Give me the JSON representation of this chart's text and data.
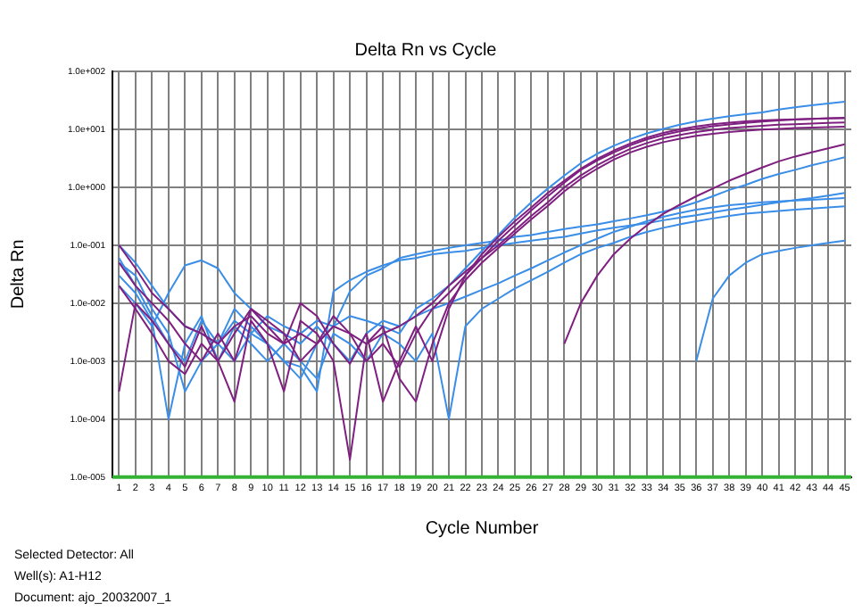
{
  "chart_data": {
    "type": "line",
    "title": "Delta Rn vs Cycle",
    "xlabel": "Cycle Number",
    "ylabel": "Delta Rn",
    "x": [
      1,
      2,
      3,
      4,
      5,
      6,
      7,
      8,
      9,
      10,
      11,
      12,
      13,
      14,
      15,
      16,
      17,
      18,
      19,
      20,
      21,
      22,
      23,
      24,
      25,
      26,
      27,
      28,
      29,
      30,
      31,
      32,
      33,
      34,
      35,
      36,
      37,
      38,
      39,
      40,
      41,
      42,
      43,
      44,
      45
    ],
    "xlim": [
      0.6,
      45.4
    ],
    "xticks": [
      1,
      2,
      3,
      4,
      5,
      6,
      7,
      8,
      9,
      10,
      11,
      12,
      13,
      14,
      15,
      16,
      17,
      18,
      19,
      20,
      21,
      22,
      23,
      24,
      25,
      26,
      27,
      28,
      29,
      30,
      31,
      32,
      33,
      34,
      35,
      36,
      37,
      38,
      39,
      40,
      41,
      42,
      43,
      44,
      45
    ],
    "log": true,
    "ylim": [
      1e-05,
      100
    ],
    "yticks": [
      {
        "value": 1e-05,
        "label": "1.0e-005"
      },
      {
        "value": 0.0001,
        "label": "1.0e-004"
      },
      {
        "value": 0.001,
        "label": "1.0e-003"
      },
      {
        "value": 0.01,
        "label": "1.0e-002"
      },
      {
        "value": 0.1,
        "label": "1.0e-001"
      },
      {
        "value": 1,
        "label": "1.0e+000"
      },
      {
        "value": 10,
        "label": "1.0e+001"
      },
      {
        "value": 100,
        "label": "1.0e+002"
      }
    ],
    "grid": true,
    "legend": false,
    "marker": "none",
    "line_style": "solid",
    "ref_lines": [
      {
        "axis": "y",
        "value": 1e-05,
        "color": "#33b233"
      }
    ],
    "annotations": [
      "Selected Detector: All",
      "Well(s): A1-H12",
      "Document: ajo_20032007_1"
    ],
    "series": [
      {
        "color": "#7f1f80",
        "values": [
          0.1,
          0.04,
          0.015,
          0.008,
          0.004,
          0.003,
          0.002,
          0.004,
          0.006,
          0.003,
          0.002,
          0.003,
          0.002,
          0.004,
          0.003,
          0.002,
          0.003,
          0.004,
          0.006,
          0.01,
          0.02,
          0.035,
          0.06,
          0.1,
          0.18,
          0.32,
          0.55,
          1.0,
          1.6,
          2.4,
          3.4,
          4.6,
          5.8,
          7,
          8,
          9,
          9.8,
          10.5,
          11,
          11.5,
          12,
          12.3,
          12.6,
          12.9,
          13.2
        ]
      },
      {
        "color": "#7f1f80",
        "values": [
          0.05,
          0.02,
          0.01,
          0.005,
          0.002,
          0.001,
          0.003,
          0.001,
          0.008,
          0.005,
          0.003,
          0.001,
          0.002,
          0.006,
          0.003,
          0.001,
          0.002,
          0.0008,
          0.003,
          0.008,
          0.015,
          0.03,
          0.06,
          0.12,
          0.22,
          0.4,
          0.7,
          1.2,
          2,
          2.9,
          4,
          5.3,
          6.7,
          8,
          9.2,
          10.3,
          11.3,
          12.1,
          12.9,
          13.6,
          14.2,
          14.7,
          15.1,
          15.5,
          15.8
        ]
      },
      {
        "color": "#7f1f80",
        "values": [
          0.0003,
          0.01,
          0.005,
          0.002,
          0.0008,
          0.004,
          0.001,
          0.0002,
          0.005,
          0.002,
          0.0003,
          0.005,
          0.003,
          0.001,
          2e-05,
          0.002,
          0.004,
          0.0005,
          0.0002,
          0.002,
          0.01,
          0.025,
          0.05,
          0.09,
          0.16,
          0.28,
          0.48,
          0.85,
          1.4,
          2.1,
          3,
          4,
          5,
          6,
          6.9,
          7.7,
          8.4,
          9,
          9.5,
          9.9,
          10.2,
          10.5,
          10.7,
          10.9,
          11.1
        ]
      },
      {
        "color": "#7f1f80",
        "values": [
          0.02,
          0.008,
          0.003,
          0.001,
          0.0006,
          0.002,
          0.001,
          0.003,
          0.008,
          0.004,
          0.002,
          0.01,
          0.006,
          0.002,
          0.0009,
          0.003,
          0.0002,
          0.001,
          0.004,
          0.001,
          0.008,
          0.03,
          0.07,
          0.14,
          0.26,
          0.45,
          0.8,
          1.3,
          2.1,
          3.1,
          4.3,
          5.7,
          7.2,
          8.7,
          10,
          11.2,
          12.2,
          13,
          13.7,
          14.2,
          14.6,
          14.9,
          15.2,
          15.4,
          15.6
        ]
      },
      {
        "color": "#7f1f80",
        "values": [
          null,
          null,
          null,
          null,
          null,
          null,
          null,
          null,
          null,
          null,
          null,
          null,
          null,
          null,
          null,
          null,
          null,
          null,
          null,
          null,
          null,
          null,
          null,
          null,
          null,
          null,
          null,
          0.002,
          0.01,
          0.03,
          0.07,
          0.13,
          0.22,
          0.35,
          0.5,
          0.7,
          0.95,
          1.3,
          1.7,
          2.2,
          2.8,
          3.4,
          4,
          4.7,
          5.5
        ]
      },
      {
        "color": "#3a8ee8",
        "values": [
          0.06,
          0.02,
          0.006,
          0.002,
          0.001,
          0.005,
          0.002,
          0.001,
          0.003,
          0.002,
          0.001,
          0.0005,
          0.002,
          0.004,
          0.006,
          0.005,
          0.004,
          0.003,
          0.008,
          0.012,
          0.02,
          0.04,
          0.08,
          0.15,
          0.3,
          0.55,
          0.95,
          1.6,
          2.6,
          3.8,
          5.2,
          6.8,
          8.5,
          10.2,
          12,
          13.7,
          15.3,
          16.8,
          18.2,
          19.6,
          22,
          24,
          26,
          28,
          30
        ]
      },
      {
        "color": "#3a8ee8",
        "values": [
          0.1,
          0.05,
          0.02,
          0.008,
          0.004,
          0.003,
          0.002,
          0.005,
          0.003,
          0.006,
          0.004,
          0.003,
          0.005,
          0.004,
          0.016,
          0.03,
          0.04,
          0.06,
          0.07,
          0.08,
          0.09,
          0.1,
          0.11,
          0.12,
          0.14,
          0.15,
          0.17,
          0.19,
          0.21,
          0.23,
          0.26,
          0.29,
          0.33,
          0.38,
          0.45,
          0.55,
          0.7,
          0.9,
          1.1,
          1.4,
          1.7,
          2,
          2.4,
          2.8,
          3.3
        ]
      },
      {
        "color": "#3a8ee8",
        "values": [
          0.03,
          0.015,
          0.005,
          0.0001,
          0.002,
          0.006,
          0.001,
          0.004,
          0.002,
          0.001,
          0.002,
          0.001,
          0.0005,
          0.003,
          0.002,
          0.001,
          0.003,
          0.002,
          0.001,
          0.003,
          0.0001,
          0.004,
          0.008,
          0.012,
          0.018,
          0.025,
          0.035,
          0.05,
          0.07,
          0.09,
          0.11,
          0.14,
          0.17,
          0.2,
          0.23,
          0.26,
          0.29,
          0.32,
          0.35,
          0.37,
          0.39,
          0.41,
          0.43,
          0.45,
          0.47
        ]
      },
      {
        "color": "#3a8ee8",
        "values": [
          0.02,
          0.01,
          0.004,
          0.015,
          0.045,
          0.055,
          0.04,
          0.015,
          0.008,
          0.004,
          0.003,
          0.002,
          0.004,
          0.002,
          0.001,
          0.003,
          0.005,
          0.004,
          0.006,
          0.008,
          0.01,
          0.013,
          0.017,
          0.022,
          0.03,
          0.04,
          0.055,
          0.075,
          0.1,
          0.13,
          0.17,
          0.21,
          0.26,
          0.31,
          0.36,
          0.41,
          0.45,
          0.49,
          0.52,
          0.55,
          0.57,
          0.59,
          0.61,
          0.63,
          0.65
        ]
      },
      {
        "color": "#3a8ee8",
        "values": [
          0.05,
          0.03,
          0.008,
          0.003,
          0.0003,
          0.001,
          0.002,
          0.008,
          0.004,
          0.002,
          0.001,
          0.0008,
          0.0003,
          0.016,
          0.025,
          0.035,
          0.045,
          0.055,
          0.06,
          0.07,
          0.075,
          0.08,
          0.09,
          0.1,
          0.11,
          0.12,
          0.13,
          0.14,
          0.16,
          0.18,
          0.2,
          0.22,
          0.24,
          0.27,
          0.3,
          0.33,
          0.37,
          0.41,
          0.45,
          0.5,
          0.55,
          0.6,
          0.65,
          0.72,
          0.8
        ]
      },
      {
        "color": "#3a8ee8",
        "values": [
          null,
          null,
          null,
          null,
          null,
          null,
          null,
          null,
          null,
          null,
          null,
          null,
          null,
          null,
          null,
          null,
          null,
          null,
          null,
          null,
          null,
          null,
          null,
          null,
          null,
          null,
          null,
          null,
          null,
          null,
          null,
          null,
          null,
          null,
          null,
          0.001,
          0.012,
          0.03,
          0.05,
          0.07,
          0.08,
          0.09,
          0.1,
          0.11,
          0.12
        ]
      }
    ]
  }
}
